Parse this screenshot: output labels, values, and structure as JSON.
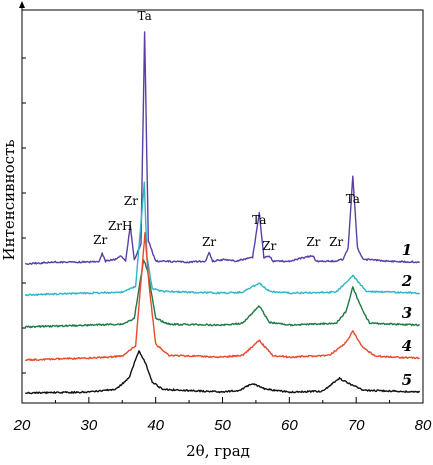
{
  "chart_data": {
    "type": "line",
    "xlabel": "2θ, град",
    "ylabel": "Интенсивность",
    "xlim": [
      20,
      80
    ],
    "x_ticks": [
      20,
      30,
      40,
      50,
      60,
      70,
      80
    ],
    "y_ticks_labeled": false,
    "grid": false,
    "legend": "none",
    "series": [
      {
        "name": "1",
        "color": "#5a3ea8",
        "points": [
          [
            20.5,
            -0.5
          ],
          [
            25,
            0.5
          ],
          [
            30,
            0.5
          ],
          [
            31.5,
            1
          ],
          [
            32,
            5
          ],
          [
            32.5,
            1
          ],
          [
            34,
            2
          ],
          [
            34.8,
            4
          ],
          [
            35.5,
            1
          ],
          [
            36.2,
            20
          ],
          [
            36.8,
            2
          ],
          [
            37.8,
            10
          ],
          [
            38.35,
            125
          ],
          [
            38.9,
            12
          ],
          [
            40,
            1
          ],
          [
            45,
            0.5
          ],
          [
            47.5,
            1
          ],
          [
            48,
            6
          ],
          [
            48.5,
            1
          ],
          [
            50.5,
            2
          ],
          [
            52,
            1
          ],
          [
            54.5,
            3
          ],
          [
            55.5,
            27
          ],
          [
            56.2,
            3
          ],
          [
            57,
            4
          ],
          [
            57.5,
            1
          ],
          [
            60,
            1
          ],
          [
            63.5,
            4
          ],
          [
            64,
            1
          ],
          [
            67,
            1
          ],
          [
            68,
            2
          ],
          [
            68.8,
            8
          ],
          [
            69.5,
            47
          ],
          [
            70.2,
            8
          ],
          [
            71,
            2
          ],
          [
            75,
            1
          ],
          [
            79.5,
            0.5
          ]
        ]
      },
      {
        "name": "2",
        "color": "#2fb5c8",
        "points": [
          [
            20.5,
            -0.5
          ],
          [
            30,
            0.5
          ],
          [
            35,
            1
          ],
          [
            37,
            4
          ],
          [
            38.3,
            60
          ],
          [
            38.7,
            20
          ],
          [
            39.5,
            3
          ],
          [
            41,
            1.5
          ],
          [
            45,
            1
          ],
          [
            50,
            0.5
          ],
          [
            53,
            1
          ],
          [
            55.5,
            6
          ],
          [
            57,
            1.5
          ],
          [
            60,
            0.5
          ],
          [
            67,
            1
          ],
          [
            69.5,
            10
          ],
          [
            71.5,
            1.5
          ],
          [
            79.5,
            0.5
          ]
        ]
      },
      {
        "name": "3",
        "color": "#1e7a44",
        "points": [
          [
            20.5,
            -0.5
          ],
          [
            30,
            0.5
          ],
          [
            35,
            1
          ],
          [
            36.8,
            4
          ],
          [
            38.2,
            36
          ],
          [
            38.8,
            30
          ],
          [
            40,
            4
          ],
          [
            42,
            1
          ],
          [
            50,
            0.5
          ],
          [
            53,
            1.5
          ],
          [
            55.5,
            11
          ],
          [
            57,
            2
          ],
          [
            60,
            0.5
          ],
          [
            67,
            1.5
          ],
          [
            68.5,
            8
          ],
          [
            69.5,
            21
          ],
          [
            70.5,
            12
          ],
          [
            72,
            1.5
          ],
          [
            79.5,
            0.5
          ]
        ]
      },
      {
        "name": "4",
        "color": "#e84a2a",
        "points": [
          [
            20.5,
            -0.5
          ],
          [
            30,
            0.5
          ],
          [
            35,
            1.5
          ],
          [
            37,
            7
          ],
          [
            38.4,
            68
          ],
          [
            39,
            40
          ],
          [
            40,
            8
          ],
          [
            42,
            2
          ],
          [
            50,
            1
          ],
          [
            53,
            2
          ],
          [
            55.5,
            10
          ],
          [
            57.5,
            2
          ],
          [
            60,
            1
          ],
          [
            66,
            2
          ],
          [
            68.5,
            9
          ],
          [
            69.5,
            15
          ],
          [
            71,
            6
          ],
          [
            73,
            1.5
          ],
          [
            79.5,
            0.5
          ]
        ]
      },
      {
        "name": "5",
        "color": "#111111",
        "points": [
          [
            20.5,
            0
          ],
          [
            30,
            0.5
          ],
          [
            34,
            2
          ],
          [
            36,
            8
          ],
          [
            37.5,
            23
          ],
          [
            38.5,
            16
          ],
          [
            39.5,
            6
          ],
          [
            41,
            2
          ],
          [
            50,
            0.5
          ],
          [
            52.5,
            1.5
          ],
          [
            54.5,
            5
          ],
          [
            56.5,
            2
          ],
          [
            60,
            0.5
          ],
          [
            65,
            1
          ],
          [
            67.5,
            8
          ],
          [
            69,
            5
          ],
          [
            71,
            1.5
          ],
          [
            79.5,
            0.5
          ]
        ]
      }
    ],
    "annotations": [
      {
        "text": "Ta",
        "x": 38.35
      },
      {
        "text": "Zr",
        "x": 36.3
      },
      {
        "text": "ZrH",
        "x": 34.7
      },
      {
        "text": "Zr",
        "x": 31.7
      },
      {
        "text": "Zr",
        "x": 48.0
      },
      {
        "text": "Ta",
        "x": 55.5
      },
      {
        "text": "Zr",
        "x": 57.0
      },
      {
        "text": "Zr",
        "x": 63.6
      },
      {
        "text": "Zr",
        "x": 67.0
      },
      {
        "text": "Ta",
        "x": 69.5
      }
    ]
  }
}
